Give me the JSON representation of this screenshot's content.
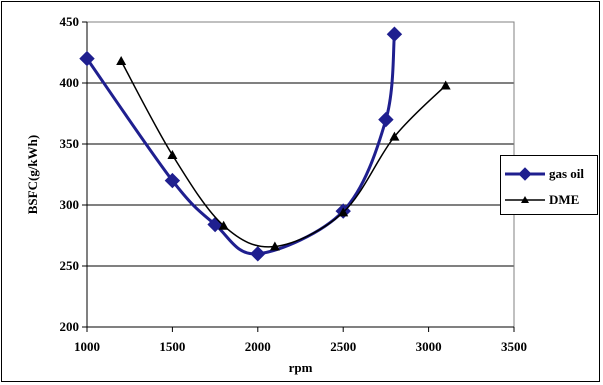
{
  "chart_data": {
    "type": "line",
    "title": "",
    "xlabel": "rpm",
    "ylabel": "BSFC(g/kWh)",
    "xlim": [
      1000,
      3500
    ],
    "ylim": [
      200,
      450
    ],
    "x_ticks": [
      1000,
      1500,
      2000,
      2500,
      3000,
      3500
    ],
    "y_ticks": [
      200,
      250,
      300,
      350,
      400,
      450
    ],
    "grid": "horizontal",
    "legend_position": "right",
    "series": [
      {
        "name": "gas oil",
        "color": "#1f1f8f",
        "marker": "diamond",
        "x": [
          1000,
          1500,
          1750,
          2000,
          2500,
          2750,
          2800
        ],
        "y": [
          420,
          320,
          284,
          260,
          295,
          370,
          440
        ]
      },
      {
        "name": "DME",
        "color": "#000000",
        "marker": "triangle",
        "x": [
          1200,
          1500,
          1800,
          2100,
          2500,
          2800,
          3100
        ],
        "y": [
          418,
          341,
          283,
          266,
          294,
          356,
          398
        ]
      }
    ]
  }
}
